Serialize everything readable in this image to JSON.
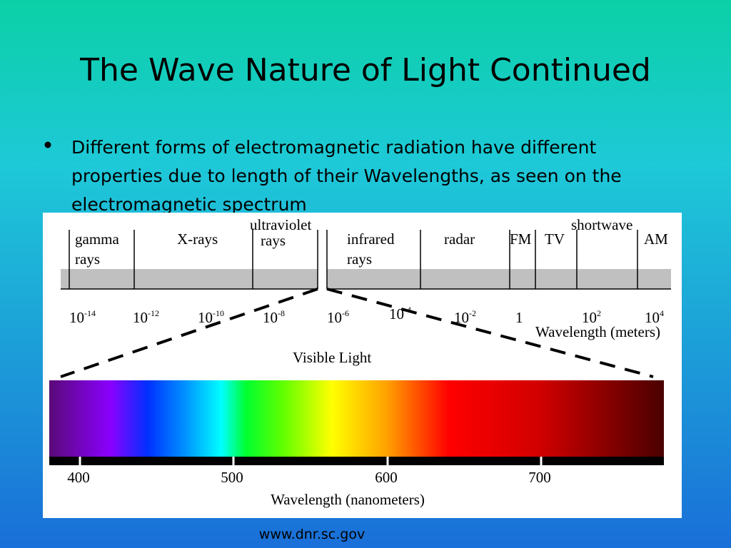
{
  "title": "The Wave Nature of Light Continued",
  "bullet": {
    "lines": [
      "Different forms of electromagnetic radiation have different",
      "properties due to length of their Wavelengths, as seen on the",
      "electromagnetic spectrum"
    ]
  },
  "diagram": {
    "bands": [
      {
        "lines": [
          "gamma",
          "rays"
        ]
      },
      {
        "lines": [
          "X-rays"
        ]
      },
      {
        "lines": [
          "ultraviolet",
          "rays"
        ]
      },
      {
        "lines": [
          "infrared",
          "rays"
        ]
      },
      {
        "lines": [
          "radar"
        ]
      },
      {
        "lines": [
          "FM"
        ]
      },
      {
        "lines": [
          "TV"
        ]
      },
      {
        "lines": [
          "shortwave"
        ]
      },
      {
        "lines": [
          "AM"
        ]
      }
    ],
    "meter_ticks": [
      {
        "base": "10",
        "exponent": "-14"
      },
      {
        "base": "10",
        "exponent": "-12"
      },
      {
        "base": "10",
        "exponent": "-10"
      },
      {
        "base": "10",
        "exponent": "-8"
      },
      {
        "base": "10",
        "exponent": "-6"
      },
      {
        "base": "10",
        "exponent": "-4"
      },
      {
        "base": "10",
        "exponent": "-2"
      },
      {
        "base": "1"
      },
      {
        "base": "10",
        "exponent": "2"
      },
      {
        "base": "10",
        "exponent": "4"
      }
    ],
    "meter_axis_label": "Wavelength (meters)",
    "visible_label": "Visible Light",
    "nm_ticks": [
      "400",
      "500",
      "600",
      "700"
    ],
    "nm_axis_label": "Wavelength (nanometers)"
  },
  "source": "www.dnr.sc.gov"
}
